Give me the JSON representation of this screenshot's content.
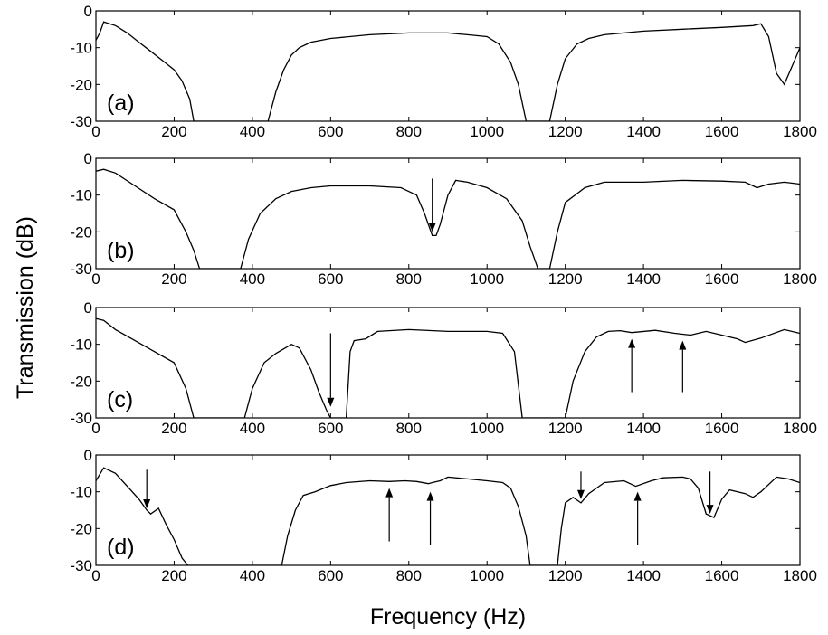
{
  "chart_data": {
    "type": "line",
    "xlabel": "Frequency (Hz)",
    "ylabel": "Transmission (dB)",
    "xlim": [
      0,
      1800
    ],
    "ylim": [
      -30,
      0
    ],
    "xticks": [
      0,
      200,
      400,
      600,
      800,
      1000,
      1200,
      1400,
      1600,
      1800
    ],
    "yticks": [
      0,
      -10,
      -20,
      -30
    ],
    "grid": false,
    "panels": [
      {
        "label": "(a)",
        "x": [
          0,
          10,
          20,
          50,
          80,
          110,
          140,
          170,
          200,
          220,
          240,
          250,
          440,
          460,
          480,
          500,
          520,
          550,
          600,
          700,
          800,
          900,
          950,
          1000,
          1030,
          1060,
          1080,
          1100,
          1160,
          1180,
          1200,
          1230,
          1260,
          1300,
          1400,
          1500,
          1600,
          1680,
          1700,
          1720,
          1740,
          1760,
          1780,
          1800
        ],
        "y": [
          -8,
          -6,
          -3,
          -4,
          -6,
          -8.5,
          -11,
          -13.5,
          -16,
          -19,
          -24,
          -30,
          -30,
          -22,
          -16,
          -12,
          -10,
          -8.5,
          -7.5,
          -6.5,
          -6,
          -6,
          -6.5,
          -7,
          -9,
          -14,
          -20,
          -30,
          -30,
          -20,
          -13,
          -9,
          -7.5,
          -6.5,
          -5.5,
          -5,
          -4.5,
          -4,
          -3.5,
          -7,
          -17,
          -20,
          -15,
          -10
        ]
      },
      {
        "label": "(b)",
        "x": [
          0,
          20,
          50,
          100,
          150,
          200,
          230,
          250,
          265,
          370,
          390,
          420,
          460,
          500,
          550,
          600,
          700,
          780,
          820,
          840,
          860,
          870,
          880,
          900,
          920,
          950,
          1000,
          1050,
          1090,
          1110,
          1130,
          1160,
          1180,
          1200,
          1250,
          1300,
          1400,
          1500,
          1600,
          1660,
          1690,
          1720,
          1760,
          1800
        ],
        "y": [
          -3.5,
          -3,
          -4,
          -7.5,
          -11,
          -14,
          -20,
          -25,
          -30,
          -30,
          -22,
          -15,
          -11,
          -9,
          -8,
          -7.5,
          -7.5,
          -8,
          -10,
          -15,
          -21,
          -21,
          -18,
          -10,
          -6,
          -6.5,
          -8,
          -11,
          -17,
          -24,
          -30,
          -30,
          -20,
          -12,
          -8,
          -6.5,
          -6.5,
          -6,
          -6.2,
          -6.5,
          -8,
          -7,
          -6.5,
          -7
        ]
      },
      {
        "label": "(c)",
        "x": [
          0,
          20,
          50,
          100,
          150,
          200,
          230,
          250,
          380,
          400,
          430,
          460,
          500,
          520,
          550,
          570,
          590,
          600,
          640,
          650,
          660,
          690,
          720,
          800,
          900,
          1000,
          1040,
          1070,
          1090,
          1200,
          1220,
          1250,
          1280,
          1310,
          1340,
          1370,
          1430,
          1480,
          1520,
          1560,
          1600,
          1640,
          1660,
          1700,
          1760,
          1800
        ],
        "y": [
          -3,
          -3.5,
          -6,
          -9,
          -12,
          -15,
          -22,
          -30,
          -30,
          -22,
          -15,
          -12.5,
          -10,
          -11,
          -17,
          -23,
          -28,
          -30,
          -30,
          -12,
          -9,
          -8.5,
          -6.5,
          -6,
          -6.5,
          -6.5,
          -7,
          -12,
          -30,
          -30,
          -20,
          -12,
          -8,
          -6.5,
          -6.3,
          -6.8,
          -6.2,
          -7,
          -7.5,
          -6.5,
          -7.5,
          -8.5,
          -9.5,
          -8.3,
          -6,
          -7
        ]
      },
      {
        "label": "(d)",
        "x": [
          0,
          20,
          50,
          80,
          110,
          130,
          140,
          160,
          180,
          200,
          220,
          235,
          240,
          475,
          490,
          510,
          530,
          560,
          600,
          640,
          700,
          750,
          790,
          820,
          850,
          860,
          880,
          900,
          950,
          1000,
          1040,
          1060,
          1080,
          1100,
          1110,
          1180,
          1190,
          1200,
          1220,
          1240,
          1260,
          1300,
          1350,
          1380,
          1420,
          1450,
          1500,
          1520,
          1540,
          1560,
          1580,
          1600,
          1620,
          1660,
          1680,
          1700,
          1740,
          1770,
          1800
        ],
        "y": [
          -7,
          -3.5,
          -5,
          -8.5,
          -12,
          -15,
          -16,
          -14.5,
          -19,
          -23,
          -28,
          -30,
          -30,
          -30,
          -22,
          -15,
          -11,
          -10,
          -8.3,
          -7.5,
          -7,
          -7.2,
          -7,
          -7.2,
          -7.8,
          -7.5,
          -7,
          -6,
          -6.5,
          -7,
          -7.5,
          -9,
          -14,
          -22,
          -30,
          -30,
          -20,
          -13,
          -11.5,
          -13,
          -10.5,
          -7.5,
          -7,
          -8.5,
          -7,
          -6.2,
          -6,
          -6.5,
          -9,
          -16,
          -17,
          -12,
          -9.5,
          -10.5,
          -11.5,
          -10,
          -6,
          -6.5,
          -7.5
        ]
      }
    ],
    "arrows": [
      {
        "panel": 1,
        "direction": "down",
        "x": 860,
        "y_from": -5.5,
        "y_to": -20
      },
      {
        "panel": 2,
        "direction": "down",
        "x": 600,
        "y_from": -7,
        "y_to": -27
      },
      {
        "panel": 2,
        "direction": "up",
        "x": 1370,
        "y_from": -23,
        "y_to": -8.5
      },
      {
        "panel": 2,
        "direction": "up",
        "x": 1500,
        "y_from": -23,
        "y_to": -9
      },
      {
        "panel": 3,
        "direction": "down",
        "x": 130,
        "y_from": -4,
        "y_to": -14.5
      },
      {
        "panel": 3,
        "direction": "up",
        "x": 750,
        "y_from": -23.5,
        "y_to": -9
      },
      {
        "panel": 3,
        "direction": "up",
        "x": 855,
        "y_from": -24.5,
        "y_to": -10
      },
      {
        "panel": 3,
        "direction": "down",
        "x": 1240,
        "y_from": -4.5,
        "y_to": -12
      },
      {
        "panel": 3,
        "direction": "up",
        "x": 1385,
        "y_from": -24.5,
        "y_to": -10
      },
      {
        "panel": 3,
        "direction": "down",
        "x": 1570,
        "y_from": -4.5,
        "y_to": -16
      }
    ]
  }
}
